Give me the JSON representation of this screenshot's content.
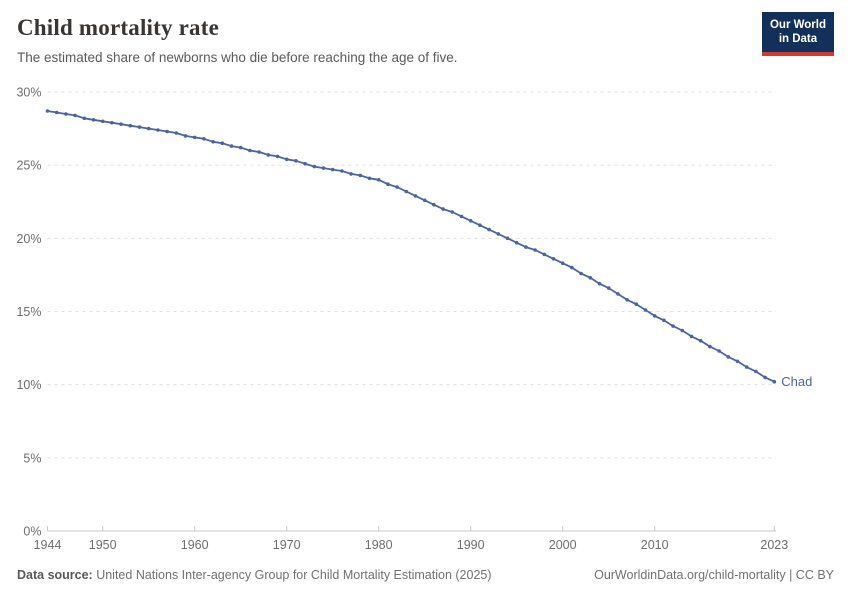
{
  "header": {
    "title": "Child mortality rate",
    "subtitle": "The estimated share of newborns who die before reaching the age of five."
  },
  "logo": {
    "line1": "Our World",
    "line2": "in Data"
  },
  "chart_data": {
    "type": "line",
    "title": "Child mortality rate",
    "xlabel": "",
    "ylabel": "",
    "xlim": [
      1944,
      2023
    ],
    "ylim": [
      0,
      30
    ],
    "grid": "horizontal-dashed",
    "legend_position": "end-of-line-label",
    "x_ticks": [
      1944,
      1950,
      1960,
      1970,
      1980,
      1990,
      2000,
      2010,
      2023
    ],
    "x_tick_labels": [
      "1944",
      "1950",
      "1960",
      "1970",
      "1980",
      "1990",
      "2000",
      "2010",
      "2023"
    ],
    "y_ticks": [
      0,
      5,
      10,
      15,
      20,
      25,
      30
    ],
    "y_tick_labels": [
      "0%",
      "5%",
      "10%",
      "15%",
      "20%",
      "25%",
      "30%"
    ],
    "x": [
      1944,
      1945,
      1946,
      1947,
      1948,
      1949,
      1950,
      1951,
      1952,
      1953,
      1954,
      1955,
      1956,
      1957,
      1958,
      1959,
      1960,
      1961,
      1962,
      1963,
      1964,
      1965,
      1966,
      1967,
      1968,
      1969,
      1970,
      1971,
      1972,
      1973,
      1974,
      1975,
      1976,
      1977,
      1978,
      1979,
      1980,
      1981,
      1982,
      1983,
      1984,
      1985,
      1986,
      1987,
      1988,
      1989,
      1990,
      1991,
      1992,
      1993,
      1994,
      1995,
      1996,
      1997,
      1998,
      1999,
      2000,
      2001,
      2002,
      2003,
      2004,
      2005,
      2006,
      2007,
      2008,
      2009,
      2010,
      2011,
      2012,
      2013,
      2014,
      2015,
      2016,
      2017,
      2018,
      2019,
      2020,
      2021,
      2022,
      2023
    ],
    "series": [
      {
        "name": "Chad",
        "color": "#4a65a0",
        "values": [
          28.7,
          28.6,
          28.5,
          28.4,
          28.2,
          28.1,
          28.0,
          27.9,
          27.8,
          27.7,
          27.6,
          27.5,
          27.4,
          27.3,
          27.2,
          27.0,
          26.9,
          26.8,
          26.6,
          26.5,
          26.3,
          26.2,
          26.0,
          25.9,
          25.7,
          25.6,
          25.4,
          25.3,
          25.1,
          24.9,
          24.8,
          24.7,
          24.6,
          24.4,
          24.3,
          24.1,
          24.0,
          23.7,
          23.5,
          23.2,
          22.9,
          22.6,
          22.3,
          22.0,
          21.8,
          21.5,
          21.2,
          20.9,
          20.6,
          20.3,
          20.0,
          19.7,
          19.4,
          19.2,
          18.9,
          18.6,
          18.3,
          18.0,
          17.6,
          17.3,
          16.9,
          16.6,
          16.2,
          15.8,
          15.5,
          15.1,
          14.7,
          14.4,
          14.0,
          13.7,
          13.3,
          13.0,
          12.6,
          12.3,
          11.9,
          11.6,
          11.2,
          10.9,
          10.5,
          10.2
        ]
      }
    ]
  },
  "colors": {
    "line": "#4a65a0",
    "grid": "#dddddd",
    "axis": "#c8c8c8",
    "tick_text": "#6e6e6e",
    "title_text": "#383532",
    "subtitle_text": "#5b5b5b",
    "footer_text": "#727272",
    "logo_bg": "#12305a",
    "logo_accent": "#d4392c"
  },
  "footer": {
    "source_label": "Data source:",
    "source_value": " United Nations Inter-agency Group for Child Mortality Estimation (2025)",
    "link": "OurWorldinData.org/child-mortality",
    "license": " | CC BY"
  }
}
